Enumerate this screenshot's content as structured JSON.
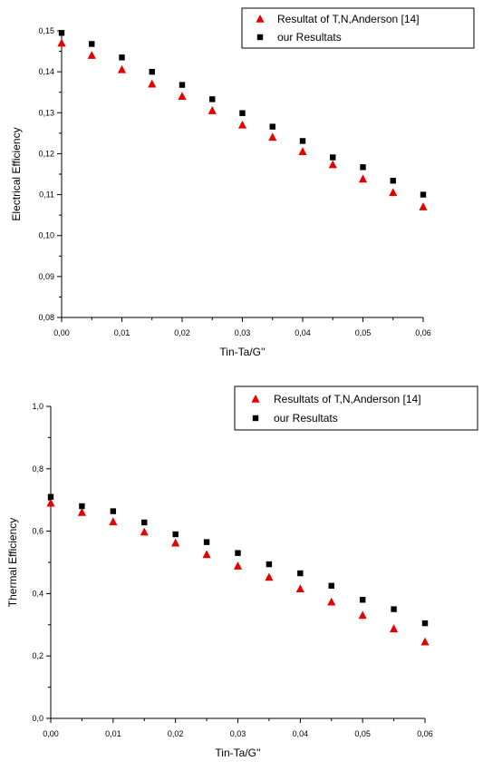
{
  "chart_data": [
    {
      "type": "scatter",
      "title": "",
      "xlabel": "Tin-Ta/G''",
      "ylabel": "Electrical Efficiency",
      "xlim": [
        0,
        0.06
      ],
      "ylim": [
        0.08,
        0.15
      ],
      "x_ticks": [
        "0,00",
        "0,01",
        "0,02",
        "0,03",
        "0,04",
        "0,05",
        "0,06"
      ],
      "y_ticks": [
        "0,08",
        "0,09",
        "0,10",
        "0,11",
        "0,12",
        "0,13",
        "0,14",
        "0,15"
      ],
      "legend_position": "top-right",
      "grid": false,
      "series": [
        {
          "name": "Resultat of T,N,Anderson [14]",
          "marker": "triangle",
          "color": "#e60000",
          "x": [
            0,
            0.005,
            0.01,
            0.015,
            0.02,
            0.025,
            0.03,
            0.035,
            0.04,
            0.045,
            0.05,
            0.055,
            0.06
          ],
          "y": [
            0.147,
            0.144,
            0.1405,
            0.137,
            0.134,
            0.1305,
            0.127,
            0.124,
            0.1205,
            0.1173,
            0.1138,
            0.1105,
            0.107
          ]
        },
        {
          "name": "our Resultats",
          "marker": "square",
          "color": "#000000",
          "x": [
            0,
            0.005,
            0.01,
            0.015,
            0.02,
            0.025,
            0.03,
            0.035,
            0.04,
            0.045,
            0.05,
            0.055,
            0.06
          ],
          "y": [
            0.1495,
            0.1468,
            0.1435,
            0.14,
            0.1368,
            0.1333,
            0.1299,
            0.1266,
            0.1231,
            0.1191,
            0.1167,
            0.1134,
            0.11
          ]
        }
      ]
    },
    {
      "type": "scatter",
      "title": "",
      "xlabel": "Tin-Ta/G''",
      "ylabel": "Thermal Efficiency",
      "xlim": [
        0,
        0.06
      ],
      "ylim": [
        0,
        1
      ],
      "x_ticks": [
        "0,00",
        "0,01",
        "0,02",
        "0,03",
        "0,04",
        "0,05",
        "0,06"
      ],
      "y_ticks": [
        "0,0",
        "0,2",
        "0,4",
        "0,6",
        "0,8",
        "1,0"
      ],
      "legend_position": "top-right",
      "grid": false,
      "series": [
        {
          "name": "Resultats of T,N,Anderson [14]",
          "marker": "triangle",
          "color": "#e60000",
          "x": [
            0,
            0.005,
            0.01,
            0.015,
            0.02,
            0.025,
            0.03,
            0.035,
            0.04,
            0.045,
            0.05,
            0.055,
            0.06
          ],
          "y": [
            0.69,
            0.66,
            0.63,
            0.597,
            0.562,
            0.525,
            0.488,
            0.452,
            0.415,
            0.373,
            0.33,
            0.287,
            0.245
          ]
        },
        {
          "name": "our Resultats",
          "marker": "square",
          "color": "#000000",
          "x": [
            0,
            0.005,
            0.01,
            0.015,
            0.02,
            0.025,
            0.03,
            0.035,
            0.04,
            0.045,
            0.05,
            0.055,
            0.06
          ],
          "y": [
            0.71,
            0.68,
            0.664,
            0.628,
            0.59,
            0.565,
            0.53,
            0.494,
            0.465,
            0.425,
            0.38,
            0.35,
            0.305
          ]
        }
      ]
    }
  ]
}
